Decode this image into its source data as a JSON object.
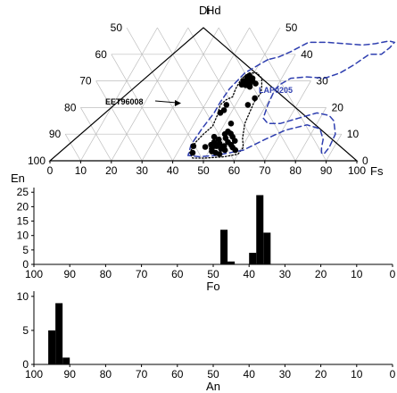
{
  "chart_data": [
    {
      "type": "scatter",
      "plot": "ternary",
      "apex_labels": {
        "top_left": "Di",
        "top_right": "Hd",
        "bottom_left": "En",
        "bottom_right": "Fs"
      },
      "bottom_ticks": [
        "0",
        "10",
        "20",
        "30",
        "40",
        "50",
        "60",
        "70",
        "80",
        "90",
        "100"
      ],
      "left_ticks": [
        "50",
        "60",
        "70",
        "80",
        "90",
        "100"
      ],
      "right_ticks": [
        "50",
        "40",
        "30",
        "20",
        "10",
        "0"
      ],
      "grid": true,
      "annotations": [
        {
          "text": "EET96008",
          "color": "#000000",
          "target": "black-points"
        },
        {
          "text": "LAP0205",
          "color": "#2f3fb0",
          "target": "blue-dashed-field"
        }
      ],
      "series": [
        {
          "name": "EET96008",
          "style": "black-filled-circles",
          "color": "#000000",
          "fields": [
            "Fs",
            "Wo"
          ],
          "points": [
            [
              48,
              30
            ],
            [
              48.5,
              31.5
            ],
            [
              49,
              32
            ],
            [
              50,
              29.5
            ],
            [
              49.5,
              30.5
            ],
            [
              50.5,
              31
            ],
            [
              49,
              29
            ],
            [
              51,
              30
            ],
            [
              49.6,
              28.4
            ],
            [
              50.8,
              28.5
            ],
            [
              48.2,
              28.6
            ],
            [
              51.2,
              27.8
            ],
            [
              52.5,
              29
            ],
            [
              55,
              23.5
            ],
            [
              54,
              21
            ],
            [
              47,
              21
            ],
            [
              46.5,
              18
            ],
            [
              47.2,
              19
            ],
            [
              52,
              14
            ],
            [
              52.5,
              11
            ],
            [
              53.8,
              10.2
            ],
            [
              48,
              5.2
            ],
            [
              51,
              8
            ],
            [
              50,
              7
            ],
            [
              52,
              6.5
            ],
            [
              54,
              5.5
            ],
            [
              49,
              9
            ],
            [
              53,
              8.5
            ],
            [
              50.5,
              4.5
            ],
            [
              55,
              4
            ],
            [
              56,
              6
            ],
            [
              52.5,
              3
            ],
            [
              55,
              9
            ],
            [
              52,
              10
            ],
            [
              54.5,
              7
            ],
            [
              49.5,
              6
            ],
            [
              51.5,
              5.5
            ],
            [
              53.5,
              4.5
            ],
            [
              57,
              5
            ],
            [
              56.5,
              7.5
            ],
            [
              51,
              3.5
            ],
            [
              58.4,
              4
            ],
            [
              54,
              2.5
            ],
            [
              44,
              5.5
            ],
            [
              45,
              3
            ]
          ]
        }
      ],
      "fields": [
        {
          "name": "EET96008",
          "style": "black-dotted-outline",
          "color": "#000000",
          "points": [
            [
              48.5,
              33
            ],
            [
              47,
              31
            ],
            [
              47,
              27
            ],
            [
              47.5,
              24
            ],
            [
              46,
              23
            ],
            [
              45,
              21
            ],
            [
              46,
              17
            ],
            [
              46.5,
              13
            ],
            [
              45,
              10
            ],
            [
              44,
              7
            ],
            [
              44,
              3
            ],
            [
              46,
              1
            ],
            [
              50,
              1
            ],
            [
              56,
              1.5
            ],
            [
              60,
              2.5
            ],
            [
              60.5,
              5
            ],
            [
              58.5,
              8.5
            ],
            [
              56.5,
              14
            ],
            [
              56,
              18
            ],
            [
              55.5,
              22
            ],
            [
              56,
              25.5
            ],
            [
              55,
              28
            ],
            [
              53.5,
              31
            ],
            [
              51,
              33
            ]
          ]
        },
        {
          "name": "LAP0205",
          "style": "blue-dashed-outline",
          "color": "#2f3fb0",
          "points": [
            [
              52,
              38
            ],
            [
              50,
              36
            ],
            [
              47,
              33
            ],
            [
              45,
              27
            ],
            [
              44.5,
              22
            ],
            [
              44.5,
              18
            ],
            [
              43.5,
              12
            ],
            [
              43,
              6
            ],
            [
              44,
              2
            ],
            [
              48,
              1.5
            ],
            [
              53,
              2
            ],
            [
              57,
              3
            ],
            [
              61,
              4
            ],
            [
              66,
              8
            ],
            [
              71,
              11.5
            ],
            [
              77,
              13.5
            ],
            [
              82,
              12
            ],
            [
              85,
              8
            ],
            [
              86,
              5
            ],
            [
              87,
              3
            ],
            [
              88,
              2.5
            ],
            [
              88.5,
              5
            ],
            [
              88,
              10
            ],
            [
              85,
              15
            ],
            [
              82.5,
              17
            ],
            [
              78,
              18
            ],
            [
              73,
              16
            ],
            [
              68,
              14
            ],
            [
              64,
              14
            ],
            [
              61.5,
              16
            ],
            [
              60.5,
              21
            ],
            [
              60,
              26
            ],
            [
              60.5,
              28.5
            ],
            [
              63,
              31
            ],
            [
              68,
              31.5
            ],
            [
              74,
              31
            ],
            [
              78,
              33
            ],
            [
              81,
              36
            ],
            [
              84,
              40
            ],
            [
              88,
              40
            ],
            [
              89.5,
              42.5
            ],
            [
              90,
              44.5
            ],
            [
              88,
              45
            ],
            [
              84,
              44
            ],
            [
              80,
              43.5
            ],
            [
              74,
              44
            ],
            [
              68,
              44.5
            ],
            [
              62,
              44.5
            ],
            [
              58,
              41
            ],
            [
              55,
              39
            ]
          ]
        }
      ]
    },
    {
      "type": "bar",
      "xlabel": "Fo",
      "x_ticks": [
        100,
        90,
        80,
        70,
        60,
        50,
        40,
        30,
        20,
        10,
        0
      ],
      "xlim": [
        100,
        0
      ],
      "y_ticks": [
        0,
        5,
        10,
        15,
        20,
        25
      ],
      "ylim": [
        0,
        26
      ],
      "bin_width": 2,
      "bins": [
        48,
        46,
        40,
        38,
        36
      ],
      "values": [
        12,
        1,
        4,
        24,
        11
      ]
    },
    {
      "type": "bar",
      "xlabel": "An",
      "x_ticks": [
        100,
        90,
        80,
        70,
        60,
        50,
        40,
        30,
        20,
        10,
        0
      ],
      "xlim": [
        100,
        0
      ],
      "y_ticks": [
        0,
        5,
        10
      ],
      "ylim": [
        0,
        10.5
      ],
      "bin_width": 2,
      "bins": [
        96,
        94,
        92
      ],
      "values": [
        5,
        9,
        1
      ]
    }
  ]
}
